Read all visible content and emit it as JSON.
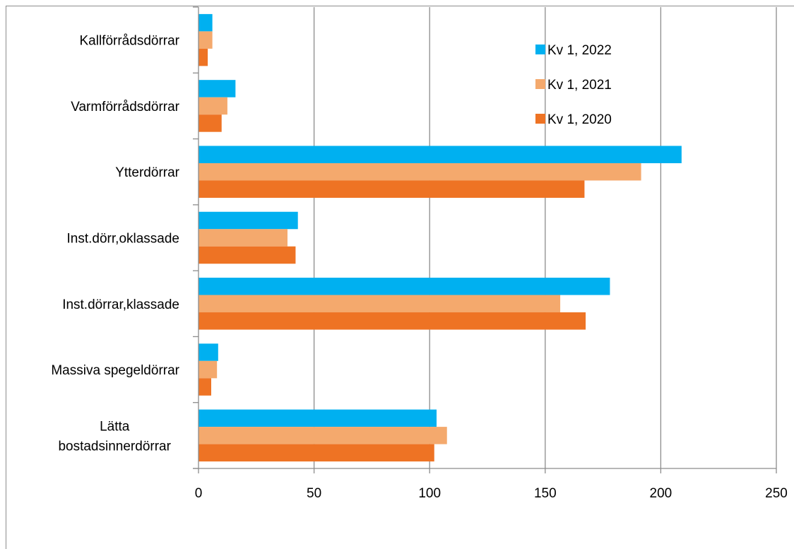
{
  "chart_data": {
    "type": "bar",
    "orientation": "horizontal",
    "categories": [
      "Kallförrådsdörrar",
      "Varmförrådsdörrar",
      "Ytterdörrar",
      "Inst.dörr,oklassade",
      "Inst.dörrar,klassade",
      "Massiva spegeldörrar",
      "Lätta bostadsinnerdörrar"
    ],
    "series": [
      {
        "name": "Kv 1, 2022",
        "color": "#00b0f0",
        "values": [
          6,
          16,
          209,
          43,
          178,
          8.5,
          103
        ]
      },
      {
        "name": "Kv 1, 2021",
        "color": "#f4a96d",
        "values": [
          6,
          12.5,
          191.5,
          38.5,
          156.5,
          8,
          107.5
        ]
      },
      {
        "name": "Kv 1, 2020",
        "color": "#ee7324",
        "values": [
          4,
          10,
          167,
          42,
          167.5,
          5.5,
          102
        ]
      }
    ],
    "xlim": [
      0,
      250
    ],
    "xticks": [
      0,
      50,
      100,
      150,
      200,
      250
    ],
    "grid": true,
    "legend": "top-right",
    "title": "",
    "xlabel": "",
    "ylabel": ""
  }
}
